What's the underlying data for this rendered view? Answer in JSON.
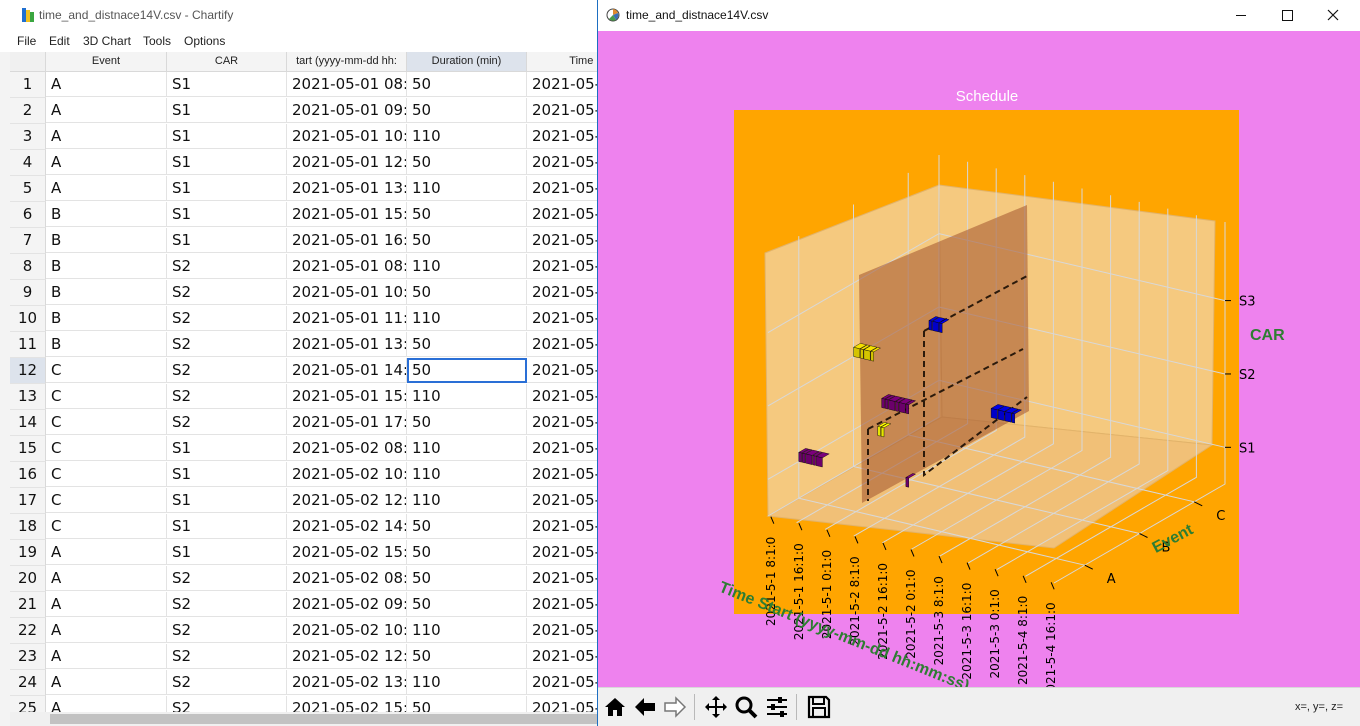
{
  "left_window": {
    "title": "time_and_distnace14V.csv - Chartify",
    "menu": [
      "File",
      "Edit",
      "3D Chart",
      "Tools",
      "Options"
    ],
    "columns": [
      "Event",
      "CAR",
      "tart (yyyy-mm-dd hh:",
      "Duration (min)",
      "Time E"
    ],
    "rows": [
      {
        "n": "1",
        "cells": [
          "A",
          "S1",
          "2021-05-01 08:",
          "50",
          "2021-05-"
        ]
      },
      {
        "n": "2",
        "cells": [
          "A",
          "S1",
          "2021-05-01 09:",
          "50",
          "2021-05-"
        ]
      },
      {
        "n": "3",
        "cells": [
          "A",
          "S1",
          "2021-05-01 10:",
          "110",
          "2021-05-"
        ]
      },
      {
        "n": "4",
        "cells": [
          "A",
          "S1",
          "2021-05-01 12:",
          "50",
          "2021-05-"
        ]
      },
      {
        "n": "5",
        "cells": [
          "A",
          "S1",
          "2021-05-01 13:",
          "110",
          "2021-05-"
        ]
      },
      {
        "n": "6",
        "cells": [
          "B",
          "S1",
          "2021-05-01 15:",
          "50",
          "2021-05-"
        ]
      },
      {
        "n": "7",
        "cells": [
          "B",
          "S1",
          "2021-05-01 16:",
          "50",
          "2021-05-"
        ]
      },
      {
        "n": "8",
        "cells": [
          "B",
          "S2",
          "2021-05-01 08:",
          "110",
          "2021-05-"
        ]
      },
      {
        "n": "9",
        "cells": [
          "B",
          "S2",
          "2021-05-01 10:",
          "50",
          "2021-05-"
        ]
      },
      {
        "n": "10",
        "cells": [
          "B",
          "S2",
          "2021-05-01 11:",
          "110",
          "2021-05-"
        ]
      },
      {
        "n": "11",
        "cells": [
          "B",
          "S2",
          "2021-05-01 13:",
          "50",
          "2021-05-"
        ]
      },
      {
        "n": "12",
        "cells": [
          "C",
          "S2",
          "2021-05-01 14:",
          "50",
          "2021-05-"
        ]
      },
      {
        "n": "13",
        "cells": [
          "C",
          "S2",
          "2021-05-01 15:",
          "110",
          "2021-05-"
        ]
      },
      {
        "n": "14",
        "cells": [
          "C",
          "S2",
          "2021-05-01 17:",
          "50",
          "2021-05-"
        ]
      },
      {
        "n": "15",
        "cells": [
          "C",
          "S1",
          "2021-05-02 08:",
          "110",
          "2021-05-"
        ]
      },
      {
        "n": "16",
        "cells": [
          "C",
          "S1",
          "2021-05-02 10:",
          "110",
          "2021-05-"
        ]
      },
      {
        "n": "17",
        "cells": [
          "C",
          "S1",
          "2021-05-02 12:",
          "110",
          "2021-05-"
        ]
      },
      {
        "n": "18",
        "cells": [
          "C",
          "S1",
          "2021-05-02 14:",
          "50",
          "2021-05-"
        ]
      },
      {
        "n": "19",
        "cells": [
          "A",
          "S1",
          "2021-05-02 15:",
          "50",
          "2021-05-"
        ]
      },
      {
        "n": "20",
        "cells": [
          "A",
          "S2",
          "2021-05-02 08:",
          "50",
          "2021-05-"
        ]
      },
      {
        "n": "21",
        "cells": [
          "A",
          "S2",
          "2021-05-02 09:",
          "50",
          "2021-05-"
        ]
      },
      {
        "n": "22",
        "cells": [
          "A",
          "S2",
          "2021-05-02 10:",
          "110",
          "2021-05-"
        ]
      },
      {
        "n": "23",
        "cells": [
          "A",
          "S2",
          "2021-05-02 12:",
          "50",
          "2021-05-"
        ]
      },
      {
        "n": "24",
        "cells": [
          "A",
          "S2",
          "2021-05-02 13:",
          "110",
          "2021-05-"
        ]
      },
      {
        "n": "25",
        "cells": [
          "A",
          "S2",
          "2021-05-02 15:",
          "50",
          "2021-05-"
        ]
      }
    ],
    "selected_row": "12",
    "selected_column": "Duration (min)"
  },
  "right_window": {
    "title": "time_and_distnace14V.csv",
    "coords_readout": "x=, y=, z=",
    "toolbar_icons": [
      "home-icon",
      "back-icon",
      "forward-icon",
      "pan-icon",
      "zoom-icon",
      "configure-subplots-icon",
      "save-icon"
    ]
  },
  "colors": {
    "figure_bg": "#ee82ee",
    "axes_bg": "#ffa500",
    "pane": "#f5c97f",
    "axis_label": "#2e7d32",
    "accent_selection": "#2a6fd6",
    "wall": "#a0522d"
  },
  "chart_data": {
    "type": "3d-bar",
    "title": "Schedule",
    "xlabel": "Time Start (yyyy-mm-dd hh:mm:ss)",
    "ylabel": "Event",
    "zlabel": "CAR",
    "x_ticks": [
      "2021-5-1 8:1:0",
      "2021-5-1 16:1:0",
      "2021-5-1 0:1:0",
      "2021-5-2 8:1:0",
      "2021-5-2 16:1:0",
      "2021-5-2 0:1:0",
      "2021-5-3 8:1:0",
      "2021-5-3 16:1:0",
      "2021-5-3 0:1:0",
      "2021-5-4 8:1:0",
      "2021-5-4 16:1:0"
    ],
    "y_ticks": [
      "A",
      "B",
      "C"
    ],
    "z_ticks": [
      "S1",
      "S2",
      "S3"
    ],
    "grid": true,
    "bars": [
      {
        "event": "A",
        "car": "S1",
        "time": "2021-05-01 08:00",
        "duration": 50,
        "color": "#6b006b"
      },
      {
        "event": "A",
        "car": "S1",
        "time": "2021-05-01 09:00",
        "duration": 50,
        "color": "#6b006b"
      },
      {
        "event": "A",
        "car": "S1",
        "time": "2021-05-01 10:00",
        "duration": 110,
        "color": "#6b006b"
      },
      {
        "event": "A",
        "car": "S1",
        "time": "2021-05-01 12:00",
        "duration": 50,
        "color": "#6b006b"
      },
      {
        "event": "A",
        "car": "S1",
        "time": "2021-05-01 13:00",
        "duration": 110,
        "color": "#6b006b"
      },
      {
        "event": "B",
        "car": "S1",
        "time": "2021-05-01 15:00",
        "duration": 50,
        "color": "#e6e600"
      },
      {
        "event": "B",
        "car": "S1",
        "time": "2021-05-01 16:00",
        "duration": 50,
        "color": "#e6e600"
      },
      {
        "event": "B",
        "car": "S2",
        "time": "2021-05-01 08:00",
        "duration": 110,
        "color": "#d4c400"
      },
      {
        "event": "B",
        "car": "S2",
        "time": "2021-05-01 10:00",
        "duration": 50,
        "color": "#d4c400"
      },
      {
        "event": "B",
        "car": "S2",
        "time": "2021-05-01 11:00",
        "duration": 110,
        "color": "#d4c400"
      },
      {
        "event": "B",
        "car": "S2",
        "time": "2021-05-01 13:00",
        "duration": 50,
        "color": "#d4c400"
      },
      {
        "event": "C",
        "car": "S2",
        "time": "2021-05-01 14:00",
        "duration": 50,
        "color": "#0000c8"
      },
      {
        "event": "C",
        "car": "S2",
        "time": "2021-05-01 15:00",
        "duration": 110,
        "color": "#0000c8"
      },
      {
        "event": "C",
        "car": "S2",
        "time": "2021-05-01 17:00",
        "duration": 50,
        "color": "#0000c8"
      },
      {
        "event": "C",
        "car": "S1",
        "time": "2021-05-02 08:00",
        "duration": 110,
        "color": "#0000c8"
      },
      {
        "event": "C",
        "car": "S1",
        "time": "2021-05-02 10:00",
        "duration": 110,
        "color": "#0000c8"
      },
      {
        "event": "C",
        "car": "S1",
        "time": "2021-05-02 12:00",
        "duration": 110,
        "color": "#0000c8"
      },
      {
        "event": "C",
        "car": "S1",
        "time": "2021-05-02 14:00",
        "duration": 50,
        "color": "#0000c8"
      },
      {
        "event": "A",
        "car": "S1",
        "time": "2021-05-02 15:00",
        "duration": 50,
        "color": "#6b006b"
      },
      {
        "event": "A",
        "car": "S2",
        "time": "2021-05-02 08:00",
        "duration": 50,
        "color": "#6b006b"
      },
      {
        "event": "A",
        "car": "S2",
        "time": "2021-05-02 09:00",
        "duration": 50,
        "color": "#6b006b"
      },
      {
        "event": "A",
        "car": "S2",
        "time": "2021-05-02 10:00",
        "duration": 110,
        "color": "#6b006b"
      },
      {
        "event": "A",
        "car": "S2",
        "time": "2021-05-02 12:00",
        "duration": 50,
        "color": "#6b006b"
      },
      {
        "event": "A",
        "car": "S2",
        "time": "2021-05-02 13:00",
        "duration": 110,
        "color": "#6b006b"
      },
      {
        "event": "A",
        "car": "S2",
        "time": "2021-05-02 15:00",
        "duration": 50,
        "color": "#6b006b"
      }
    ]
  }
}
